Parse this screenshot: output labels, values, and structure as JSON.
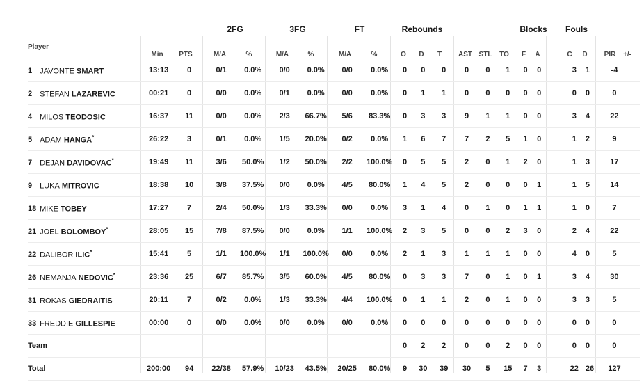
{
  "groups": {
    "fg2": "2FG",
    "fg3": "3FG",
    "ft": "FT",
    "reb": "Rebounds",
    "blk": "Blocks",
    "fouls": "Fouls"
  },
  "headers": {
    "player": "Player",
    "min": "Min",
    "pts": "PTS",
    "fg2_ma": "M/A",
    "fg2_pct": "%",
    "fg3_ma": "M/A",
    "fg3_pct": "%",
    "ft_ma": "M/A",
    "ft_pct": "%",
    "o": "O",
    "d": "D",
    "t": "T",
    "ast": "AST",
    "stl": "STL",
    "to": "TO",
    "f": "F",
    "a": "A",
    "c": "C",
    "fd": "D",
    "pir": "PIR",
    "pm": "+/-"
  },
  "rows": [
    {
      "num": "1",
      "first": "JAVONTE",
      "last": "SMART",
      "starter": false,
      "min": "13:13",
      "pts": "0",
      "fg2ma": "0/1",
      "fg2pct": "0.0%",
      "fg3ma": "0/0",
      "fg3pct": "0.0%",
      "ftma": "0/0",
      "ftpct": "0.0%",
      "o": "0",
      "d": "0",
      "t": "0",
      "ast": "0",
      "stl": "0",
      "to": "1",
      "f": "0",
      "a": "0",
      "c": "3",
      "fd": "1",
      "pir": "-4",
      "pm": ""
    },
    {
      "num": "2",
      "first": "STEFAN",
      "last": "LAZAREVIC",
      "starter": false,
      "min": "00:21",
      "pts": "0",
      "fg2ma": "0/0",
      "fg2pct": "0.0%",
      "fg3ma": "0/1",
      "fg3pct": "0.0%",
      "ftma": "0/0",
      "ftpct": "0.0%",
      "o": "0",
      "d": "1",
      "t": "1",
      "ast": "0",
      "stl": "0",
      "to": "0",
      "f": "0",
      "a": "0",
      "c": "0",
      "fd": "0",
      "pir": "0",
      "pm": ""
    },
    {
      "num": "4",
      "first": "MILOS",
      "last": "TEODOSIC",
      "starter": false,
      "min": "16:37",
      "pts": "11",
      "fg2ma": "0/0",
      "fg2pct": "0.0%",
      "fg3ma": "2/3",
      "fg3pct": "66.7%",
      "ftma": "5/6",
      "ftpct": "83.3%",
      "o": "0",
      "d": "3",
      "t": "3",
      "ast": "9",
      "stl": "1",
      "to": "1",
      "f": "0",
      "a": "0",
      "c": "3",
      "fd": "4",
      "pir": "22",
      "pm": ""
    },
    {
      "num": "5",
      "first": "ADAM",
      "last": "HANGA",
      "starter": true,
      "min": "26:22",
      "pts": "3",
      "fg2ma": "0/1",
      "fg2pct": "0.0%",
      "fg3ma": "1/5",
      "fg3pct": "20.0%",
      "ftma": "0/2",
      "ftpct": "0.0%",
      "o": "1",
      "d": "6",
      "t": "7",
      "ast": "7",
      "stl": "2",
      "to": "5",
      "f": "1",
      "a": "0",
      "c": "1",
      "fd": "2",
      "pir": "9",
      "pm": ""
    },
    {
      "num": "7",
      "first": "DEJAN",
      "last": "DAVIDOVAC",
      "starter": true,
      "min": "19:49",
      "pts": "11",
      "fg2ma": "3/6",
      "fg2pct": "50.0%",
      "fg3ma": "1/2",
      "fg3pct": "50.0%",
      "ftma": "2/2",
      "ftpct": "100.0%",
      "o": "0",
      "d": "5",
      "t": "5",
      "ast": "2",
      "stl": "0",
      "to": "1",
      "f": "2",
      "a": "0",
      "c": "1",
      "fd": "3",
      "pir": "17",
      "pm": ""
    },
    {
      "num": "9",
      "first": "LUKA",
      "last": "MITROVIC",
      "starter": false,
      "min": "18:38",
      "pts": "10",
      "fg2ma": "3/8",
      "fg2pct": "37.5%",
      "fg3ma": "0/0",
      "fg3pct": "0.0%",
      "ftma": "4/5",
      "ftpct": "80.0%",
      "o": "1",
      "d": "4",
      "t": "5",
      "ast": "2",
      "stl": "0",
      "to": "0",
      "f": "0",
      "a": "1",
      "c": "1",
      "fd": "5",
      "pir": "14",
      "pm": ""
    },
    {
      "num": "18",
      "first": "MIKE",
      "last": "TOBEY",
      "starter": false,
      "min": "17:27",
      "pts": "7",
      "fg2ma": "2/4",
      "fg2pct": "50.0%",
      "fg3ma": "1/3",
      "fg3pct": "33.3%",
      "ftma": "0/0",
      "ftpct": "0.0%",
      "o": "3",
      "d": "1",
      "t": "4",
      "ast": "0",
      "stl": "1",
      "to": "0",
      "f": "1",
      "a": "1",
      "c": "1",
      "fd": "0",
      "pir": "7",
      "pm": ""
    },
    {
      "num": "21",
      "first": "JOEL",
      "last": "BOLOMBOY",
      "starter": true,
      "min": "28:05",
      "pts": "15",
      "fg2ma": "7/8",
      "fg2pct": "87.5%",
      "fg3ma": "0/0",
      "fg3pct": "0.0%",
      "ftma": "1/1",
      "ftpct": "100.0%",
      "o": "2",
      "d": "3",
      "t": "5",
      "ast": "0",
      "stl": "0",
      "to": "2",
      "f": "3",
      "a": "0",
      "c": "2",
      "fd": "4",
      "pir": "22",
      "pm": ""
    },
    {
      "num": "22",
      "first": "DALIBOR",
      "last": "ILIC",
      "starter": true,
      "min": "15:41",
      "pts": "5",
      "fg2ma": "1/1",
      "fg2pct": "100.0%",
      "fg3ma": "1/1",
      "fg3pct": "100.0%",
      "ftma": "0/0",
      "ftpct": "0.0%",
      "o": "2",
      "d": "1",
      "t": "3",
      "ast": "1",
      "stl": "1",
      "to": "1",
      "f": "0",
      "a": "0",
      "c": "4",
      "fd": "0",
      "pir": "5",
      "pm": ""
    },
    {
      "num": "26",
      "first": "NEMANJA",
      "last": "NEDOVIC",
      "starter": true,
      "min": "23:36",
      "pts": "25",
      "fg2ma": "6/7",
      "fg2pct": "85.7%",
      "fg3ma": "3/5",
      "fg3pct": "60.0%",
      "ftma": "4/5",
      "ftpct": "80.0%",
      "o": "0",
      "d": "3",
      "t": "3",
      "ast": "7",
      "stl": "0",
      "to": "1",
      "f": "0",
      "a": "1",
      "c": "3",
      "fd": "4",
      "pir": "30",
      "pm": ""
    },
    {
      "num": "31",
      "first": "ROKAS",
      "last": "GIEDRAITIS",
      "starter": false,
      "min": "20:11",
      "pts": "7",
      "fg2ma": "0/2",
      "fg2pct": "0.0%",
      "fg3ma": "1/3",
      "fg3pct": "33.3%",
      "ftma": "4/4",
      "ftpct": "100.0%",
      "o": "0",
      "d": "1",
      "t": "1",
      "ast": "2",
      "stl": "0",
      "to": "1",
      "f": "0",
      "a": "0",
      "c": "3",
      "fd": "3",
      "pir": "5",
      "pm": ""
    },
    {
      "num": "33",
      "first": "FREDDIE",
      "last": "GILLESPIE",
      "starter": false,
      "min": "00:00",
      "pts": "0",
      "fg2ma": "0/0",
      "fg2pct": "0.0%",
      "fg3ma": "0/0",
      "fg3pct": "0.0%",
      "ftma": "0/0",
      "ftpct": "0.0%",
      "o": "0",
      "d": "0",
      "t": "0",
      "ast": "0",
      "stl": "0",
      "to": "0",
      "f": "0",
      "a": "0",
      "c": "0",
      "fd": "0",
      "pir": "0",
      "pm": ""
    }
  ],
  "team_row": {
    "label": "Team",
    "o": "0",
    "d": "2",
    "t": "2",
    "ast": "0",
    "stl": "0",
    "to": "2",
    "f": "0",
    "a": "0",
    "c": "0",
    "fd": "0",
    "pir": "0"
  },
  "total_row": {
    "label": "Total",
    "min": "200:00",
    "pts": "94",
    "fg2ma": "22/38",
    "fg2pct": "57.9%",
    "fg3ma": "10/23",
    "fg3pct": "43.5%",
    "ftma": "20/25",
    "ftpct": "80.0%",
    "o": "9",
    "d": "30",
    "t": "39",
    "ast": "30",
    "stl": "5",
    "to": "15",
    "f": "7",
    "a": "3",
    "c": "22",
    "fd": "26",
    "pir": "127"
  }
}
